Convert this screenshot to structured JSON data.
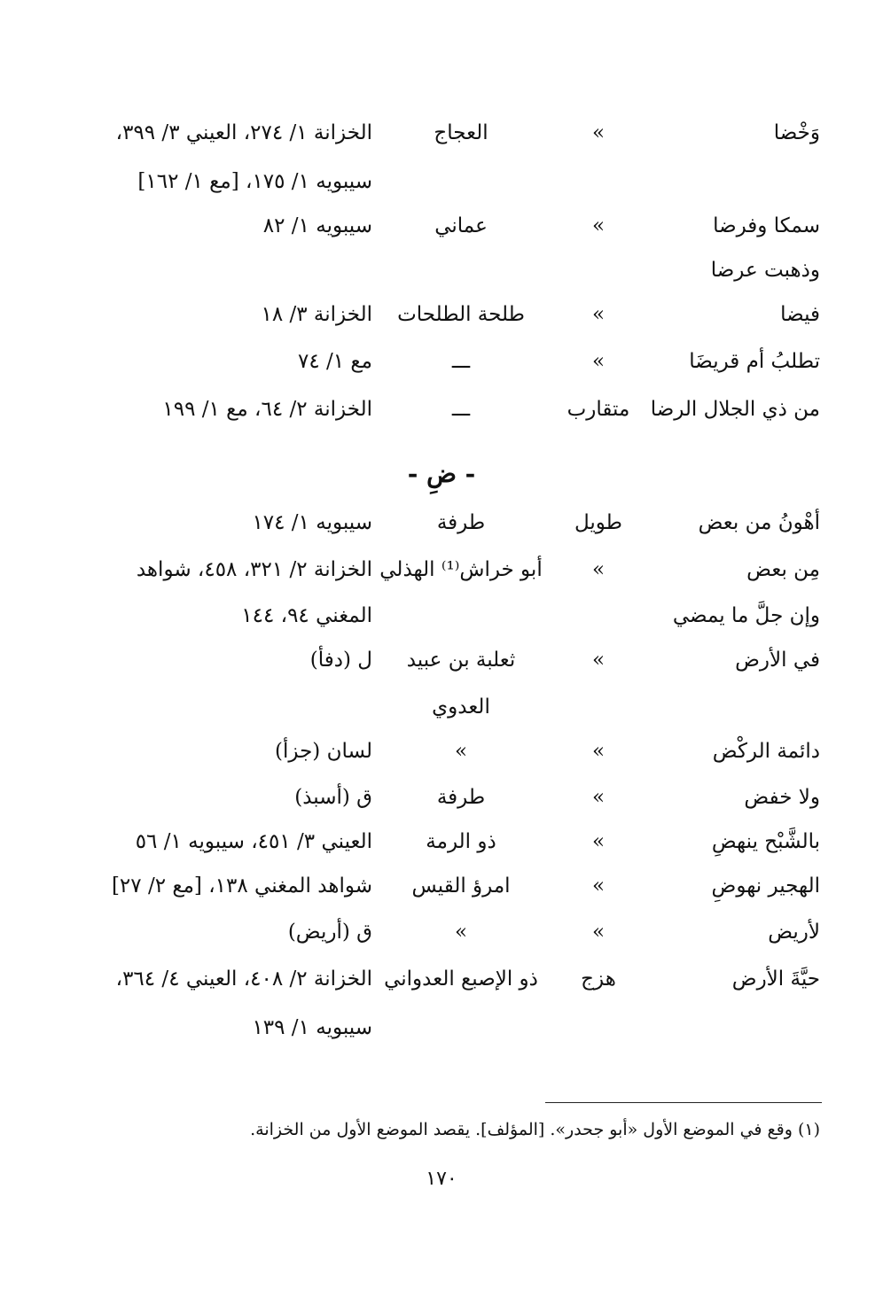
{
  "rows_top": [
    {
      "rhyme": "وَخْضا",
      "meter": "»",
      "poet": "العجاج",
      "sources": "الخزانة ١/ ٢٧٤، العيني ٣/ ٣٩٩،"
    },
    {
      "rhyme": "",
      "meter": "",
      "poet": "",
      "sources": "سيبويه ١/ ١٧٥، [مع ١/ ١٦٢]"
    },
    {
      "rhyme": "سمكا وفرضا",
      "meter": "»",
      "poet": "عماني",
      "sources": "سيبويه ١/ ٨٢"
    },
    {
      "rhyme": "وذهبت عرضا",
      "meter": "",
      "poet": "",
      "sources": ""
    },
    {
      "rhyme": "فيضا",
      "meter": "»",
      "poet": "طلحة الطلحات",
      "sources": "الخزانة ٣/ ١٨"
    },
    {
      "rhyme": "تطلبُ أم قريضَا",
      "meter": "»",
      "poet": "ـــ",
      "sources": "مع ١/ ٧٤"
    },
    {
      "rhyme": "من ذي الجلال الرضا",
      "meter": "متقارب",
      "poet": "ـــ",
      "sources": "الخزانة ٢/ ٦٤، مع ١/ ١٩٩"
    }
  ],
  "section_heading": "- ضِ -",
  "rows_bottom": [
    {
      "rhyme": "أهْونُ من بعض",
      "meter": "طويل",
      "poet": "طرفة",
      "sources": "سيبويه ١/ ١٧٤"
    },
    {
      "rhyme": "مِن بعض",
      "meter": "»",
      "poet": "أبو خراش⁽¹⁾ الهذلي",
      "sources": "الخزانة ٢/ ٣٢١، ٤٥٨، شواهد"
    },
    {
      "rhyme": "وإن جلَّ ما يمضي",
      "meter": "",
      "poet": "",
      "sources": "المغني ٩٤، ١٤٤"
    },
    {
      "rhyme": "في الأرض",
      "meter": "»",
      "poet": "ثعلبة بن عبيد",
      "sources": "ل (دفأ)"
    },
    {
      "rhyme": "",
      "meter": "",
      "poet": "العدوي",
      "sources": ""
    },
    {
      "rhyme": "دائمة الركْض",
      "meter": "»",
      "poet": "»",
      "sources": "لسان (جزأ)"
    },
    {
      "rhyme": "ولا خفض",
      "meter": "»",
      "poet": "طرفة",
      "sources": "ق (أسبذ)"
    },
    {
      "rhyme": "بالشَّبْح ينهضِ",
      "meter": "»",
      "poet": "ذو الرمة",
      "sources": "العيني ٣/ ٤٥١، سيبويه ١/ ٥٦"
    },
    {
      "rhyme": "الهجير نهوضِ",
      "meter": "»",
      "poet": "امرؤ القيس",
      "sources": "شواهد المغني ١٣٨، [مع ٢/ ٢٧]"
    },
    {
      "rhyme": "لأريض",
      "meter": "»",
      "poet": "»",
      "sources": "ق (أريض)"
    },
    {
      "rhyme": "حيَّةَ الأرض",
      "meter": "هزج",
      "poet": "ذو الإصبع العدواني",
      "sources": "الخزانة ٢/ ٤٠٨، العيني ٤/ ٣٦٤،"
    },
    {
      "rhyme": "",
      "meter": "",
      "poet": "",
      "sources": "سيبويه ١/ ١٣٩"
    }
  ],
  "footnote": "(١) وقع في الموضع الأول «أبو جحدر». [المؤلف]. يقصد الموضع الأول من الخزانة.",
  "page_number": "١٧٠"
}
